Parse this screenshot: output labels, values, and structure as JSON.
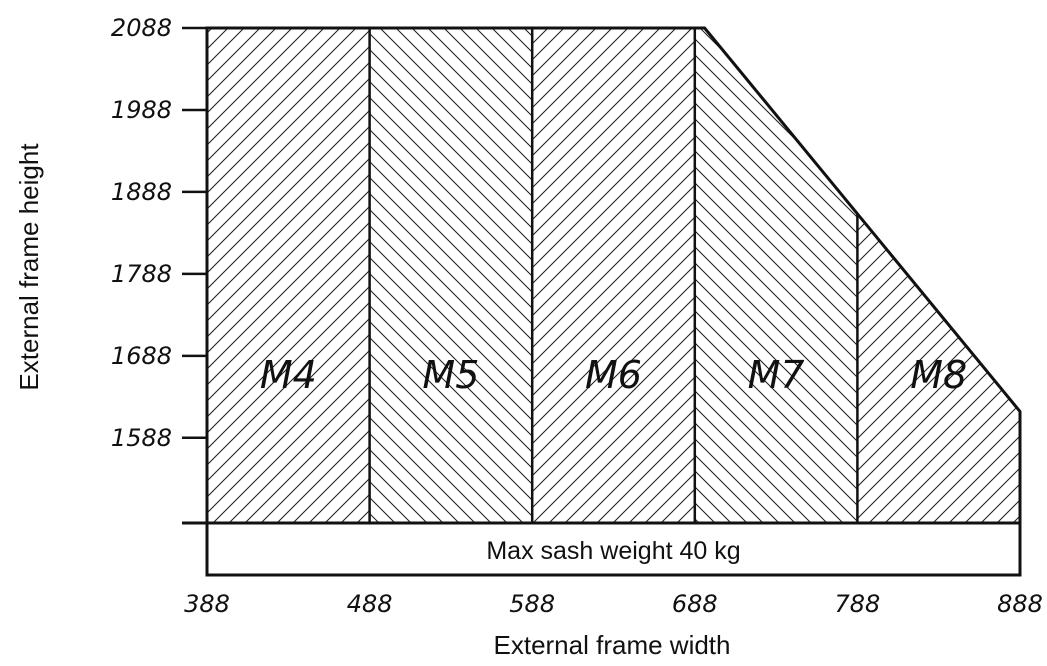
{
  "chart_data": {
    "type": "area",
    "xlabel": "External frame width",
    "ylabel": "External frame height",
    "x_ticks": [
      388,
      488,
      588,
      688,
      788,
      888
    ],
    "y_ticks": [
      1588,
      1688,
      1788,
      1888,
      1988,
      2088
    ],
    "xlim": [
      388,
      888
    ],
    "ylim": [
      1484,
      2088
    ],
    "band_text": "Max sash weight 40 kg",
    "envelope": [
      [
        388,
        2088
      ],
      [
        694,
        2088
      ],
      [
        888,
        1620
      ],
      [
        888,
        1484
      ],
      [
        388,
        1484
      ]
    ],
    "zones": [
      {
        "name": "M4",
        "x_from": 388,
        "x_to": 488,
        "hatch": "forward"
      },
      {
        "name": "M5",
        "x_from": 488,
        "x_to": 588,
        "hatch": "backward"
      },
      {
        "name": "M6",
        "x_from": 588,
        "x_to": 688,
        "hatch": "forward"
      },
      {
        "name": "M7",
        "x_from": 688,
        "x_to": 788,
        "hatch": "backward"
      },
      {
        "name": "M8",
        "x_from": 788,
        "x_to": 888,
        "hatch": "forward"
      }
    ]
  }
}
